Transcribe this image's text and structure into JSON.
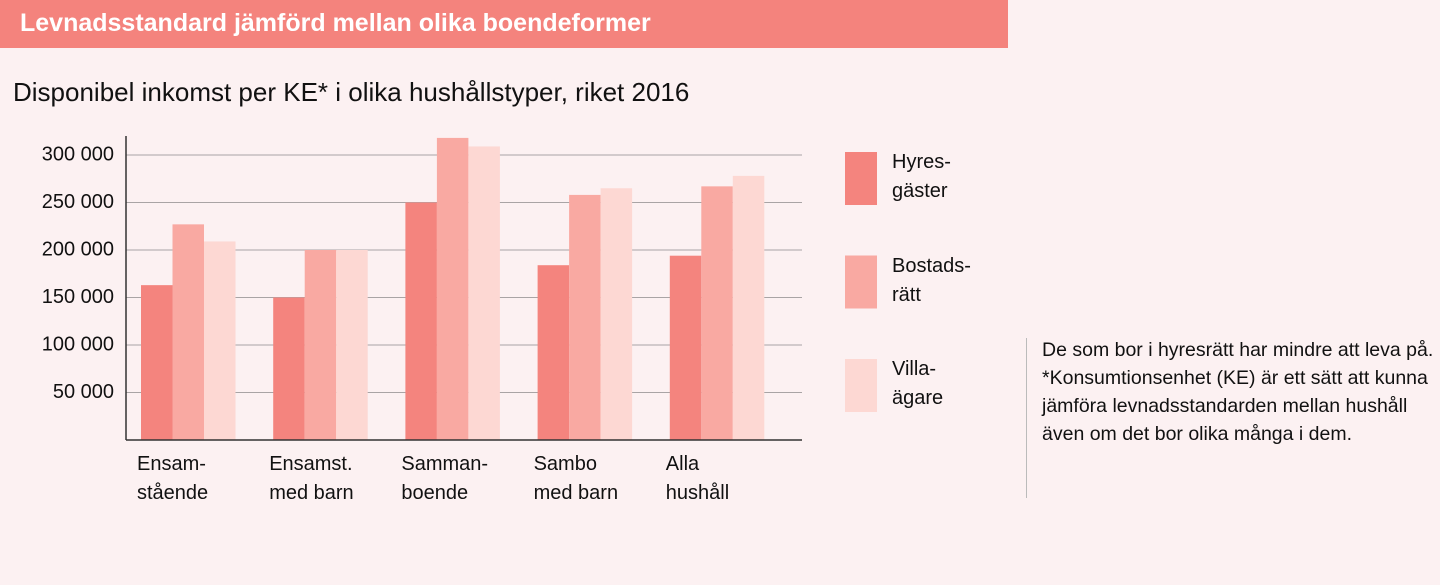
{
  "chart_data": {
    "type": "bar",
    "header": "Levnadsstandard jämförd mellan olika boendeformer",
    "title": "Disponibel inkomst per KE* i olika hushållstyper, riket 2016",
    "categories": [
      "Ensam-\nstående",
      "Ensamst.\nmed barn",
      "Samman-\nboende",
      "Sambo\nmed barn",
      "Alla\nhushåll"
    ],
    "series": [
      {
        "name": "Hyres-\ngäster",
        "color": "#f4847e",
        "values": [
          163000,
          150000,
          250000,
          184000,
          194000
        ]
      },
      {
        "name": "Bostads-\nrätt",
        "color": "#f9a9a2",
        "values": [
          227000,
          200000,
          318000,
          258000,
          267000
        ]
      },
      {
        "name": "Villa-\nägare",
        "color": "#fdd8d3",
        "values": [
          209000,
          200000,
          309000,
          265000,
          278000
        ]
      }
    ],
    "ylim": [
      0,
      320000
    ],
    "yticks": [
      {
        "value": 50000,
        "label": "50 000"
      },
      {
        "value": 100000,
        "label": "100 000"
      },
      {
        "value": 150000,
        "label": "150 000"
      },
      {
        "value": 200000,
        "label": "200 000"
      },
      {
        "value": 250000,
        "label": "250 000"
      },
      {
        "value": 300000,
        "label": "300 000"
      }
    ],
    "grid": true,
    "note": "De som bor i hyresrätt har mindre att leva på. *Konsumtionsenhet (KE) är ett sätt att kunna jämföra levnadsstandarden mellan hushåll även om det bor olika många i dem."
  }
}
